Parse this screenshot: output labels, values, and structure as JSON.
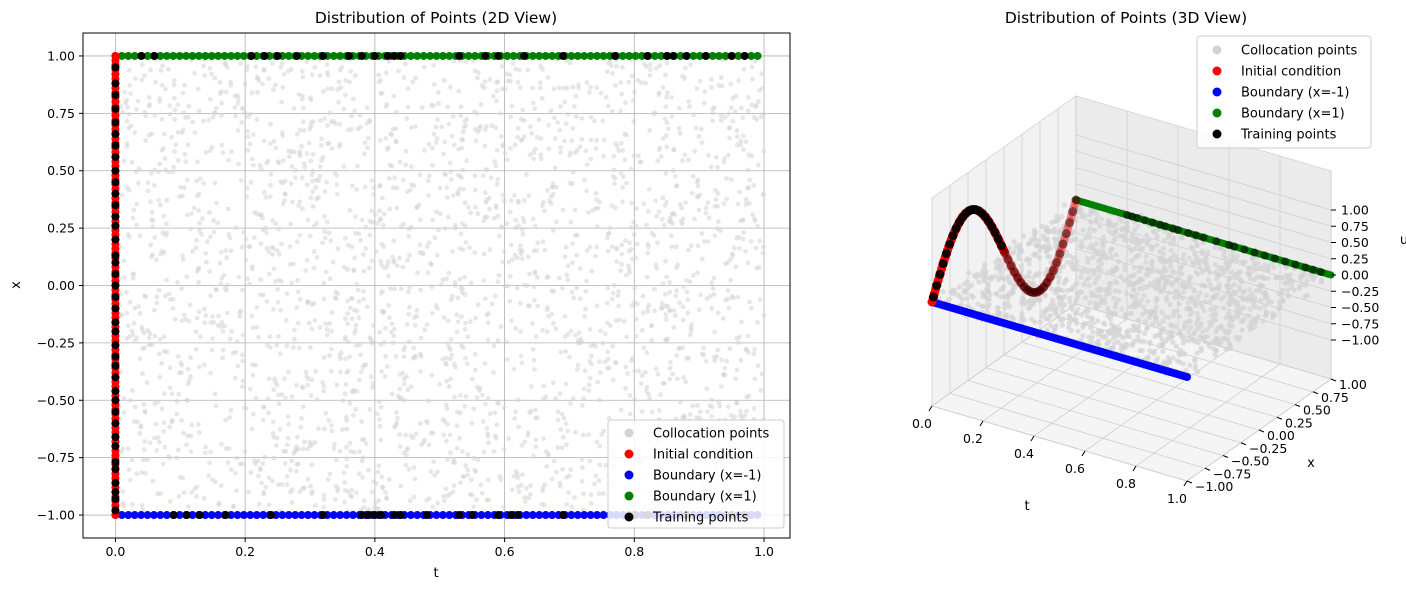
{
  "chart_data": [
    {
      "type": "scatter",
      "title": "Distribution of Points (2D View)",
      "xlabel": "t",
      "ylabel": "x",
      "xlim": [
        -0.05,
        1.04
      ],
      "ylim": [
        -1.1,
        1.1
      ],
      "xticks": [
        "0.0",
        "0.2",
        "0.4",
        "0.6",
        "0.8",
        "1.0"
      ],
      "yticks": [
        "1.00",
        "0.75",
        "0.50",
        "0.25",
        "0.00",
        "−0.25",
        "−0.50",
        "−0.75",
        "−1.00"
      ],
      "grid": true,
      "legend_position": "lower-right",
      "series": [
        {
          "name": "Collocation points",
          "color": "#d3d3d3",
          "description": "uniform random points over t in [0,1], x in [-1,1]"
        },
        {
          "name": "Initial condition",
          "color": "#ff0000",
          "t": 0,
          "x_range": [
            -1,
            1
          ]
        },
        {
          "name": "Boundary (x=-1)",
          "color": "#0000ff",
          "x": -1,
          "t_range": [
            0,
            0.99
          ]
        },
        {
          "name": "Boundary (x=1)",
          "color": "#008000",
          "x": 1,
          "t_range": [
            0,
            0.99
          ]
        },
        {
          "name": "Training points",
          "color": "#000000",
          "bottom_t": [
            0.09,
            0.11,
            0.13,
            0.17,
            0.24,
            0.32,
            0.38,
            0.39,
            0.4,
            0.41,
            0.43,
            0.44,
            0.48,
            0.53,
            0.55,
            0.59,
            0.61,
            0.62,
            0.69,
            0.8,
            0.82,
            0.88,
            0.95,
            0.97
          ],
          "top_t": [
            0.04,
            0.06,
            0.21,
            0.23,
            0.25,
            0.28,
            0.32,
            0.36,
            0.38,
            0.4,
            0.42,
            0.43,
            0.44,
            0.53,
            0.57,
            0.59,
            0.63,
            0.69,
            0.77,
            0.82,
            0.85,
            0.86,
            0.88,
            0.91,
            0.95,
            0.97
          ],
          "left_x_note": "many points along t = 0"
        }
      ]
    },
    {
      "type": "scatter3d",
      "title": "Distribution of Points (3D View)",
      "xlabel": "t",
      "ylabel": "x",
      "zlabel": "u",
      "xticks": [
        "0.0",
        "0.2",
        "0.4",
        "0.6",
        "0.8",
        "1.0"
      ],
      "yticks": [
        "−1.00",
        "−0.75",
        "−0.50",
        "−0.25",
        "0.00",
        "0.25",
        "0.50",
        "0.75",
        "1.00"
      ],
      "zticks": [
        "−1.00",
        "−0.75",
        "−0.50",
        "−0.25",
        "0.00",
        "0.25",
        "0.50",
        "0.75",
        "1.00"
      ],
      "legend_position": "upper-right",
      "series": [
        {
          "name": "Collocation points",
          "color": "#d3d3d3",
          "u": 0
        },
        {
          "name": "Initial condition",
          "color": "#ff0000",
          "u_function": "-sin(pi*x)"
        },
        {
          "name": "Boundary (x=-1)",
          "color": "#0000ff",
          "u": 0
        },
        {
          "name": "Boundary (x=1)",
          "color": "#008000",
          "u": 0
        },
        {
          "name": "Training points",
          "color": "#000000"
        }
      ]
    }
  ]
}
